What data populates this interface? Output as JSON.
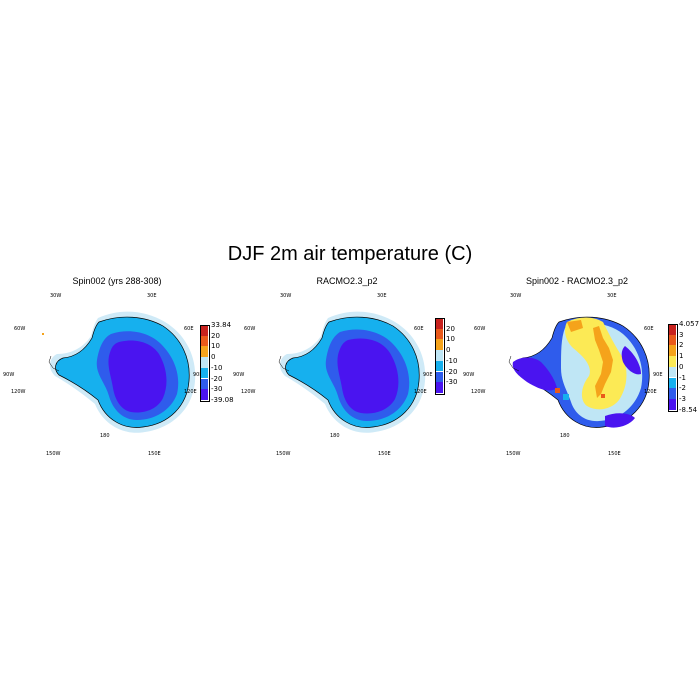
{
  "title": "DJF 2m air temperature (C)",
  "panels": [
    {
      "title": "Spin002 (yrs 288-308)",
      "lon_labels": [
        "30W",
        "30E",
        "60W",
        "60E",
        "90W",
        "90E",
        "120W",
        "120E",
        "150W",
        "150E",
        "180"
      ],
      "colorbar": {
        "colors": [
          "#4a14f0",
          "#2f5cec",
          "#16b0ee",
          "#bfe6f5",
          "#f5a31b",
          "#ea5a1b",
          "#c8221e"
        ],
        "labels": [
          "33.84",
          "20",
          "10",
          "0",
          "-10",
          "-20",
          "-30",
          "-39.08"
        ]
      }
    },
    {
      "title": "RACMO2.3_p2",
      "lon_labels": [
        "30W",
        "30E",
        "60W",
        "60E",
        "90W",
        "90E",
        "120W",
        "120E",
        "150W",
        "150E",
        "180"
      ],
      "colorbar": {
        "colors": [
          "#4a14f0",
          "#2f5cec",
          "#16b0ee",
          "#bfe6f5",
          "#f5a31b",
          "#ea5a1b",
          "#c8221e"
        ],
        "labels": [
          "20",
          "10",
          "0",
          "-10",
          "-20",
          "-30"
        ]
      }
    },
    {
      "title": "Spin002 - RACMO2.3_p2",
      "lon_labels": [
        "30W",
        "30E",
        "60W",
        "60E",
        "90W",
        "90E",
        "120W",
        "120E",
        "150W",
        "150E",
        "180"
      ],
      "colorbar": {
        "colors": [
          "#4a14f0",
          "#2f5cec",
          "#16b0ee",
          "#bfe6f5",
          "#fcea55",
          "#f5a31b",
          "#ea5a1b",
          "#c8221e"
        ],
        "labels": [
          "4.057",
          "3",
          "2",
          "1",
          "0",
          "-1",
          "-2",
          "-3",
          "-8.54"
        ]
      }
    }
  ]
}
